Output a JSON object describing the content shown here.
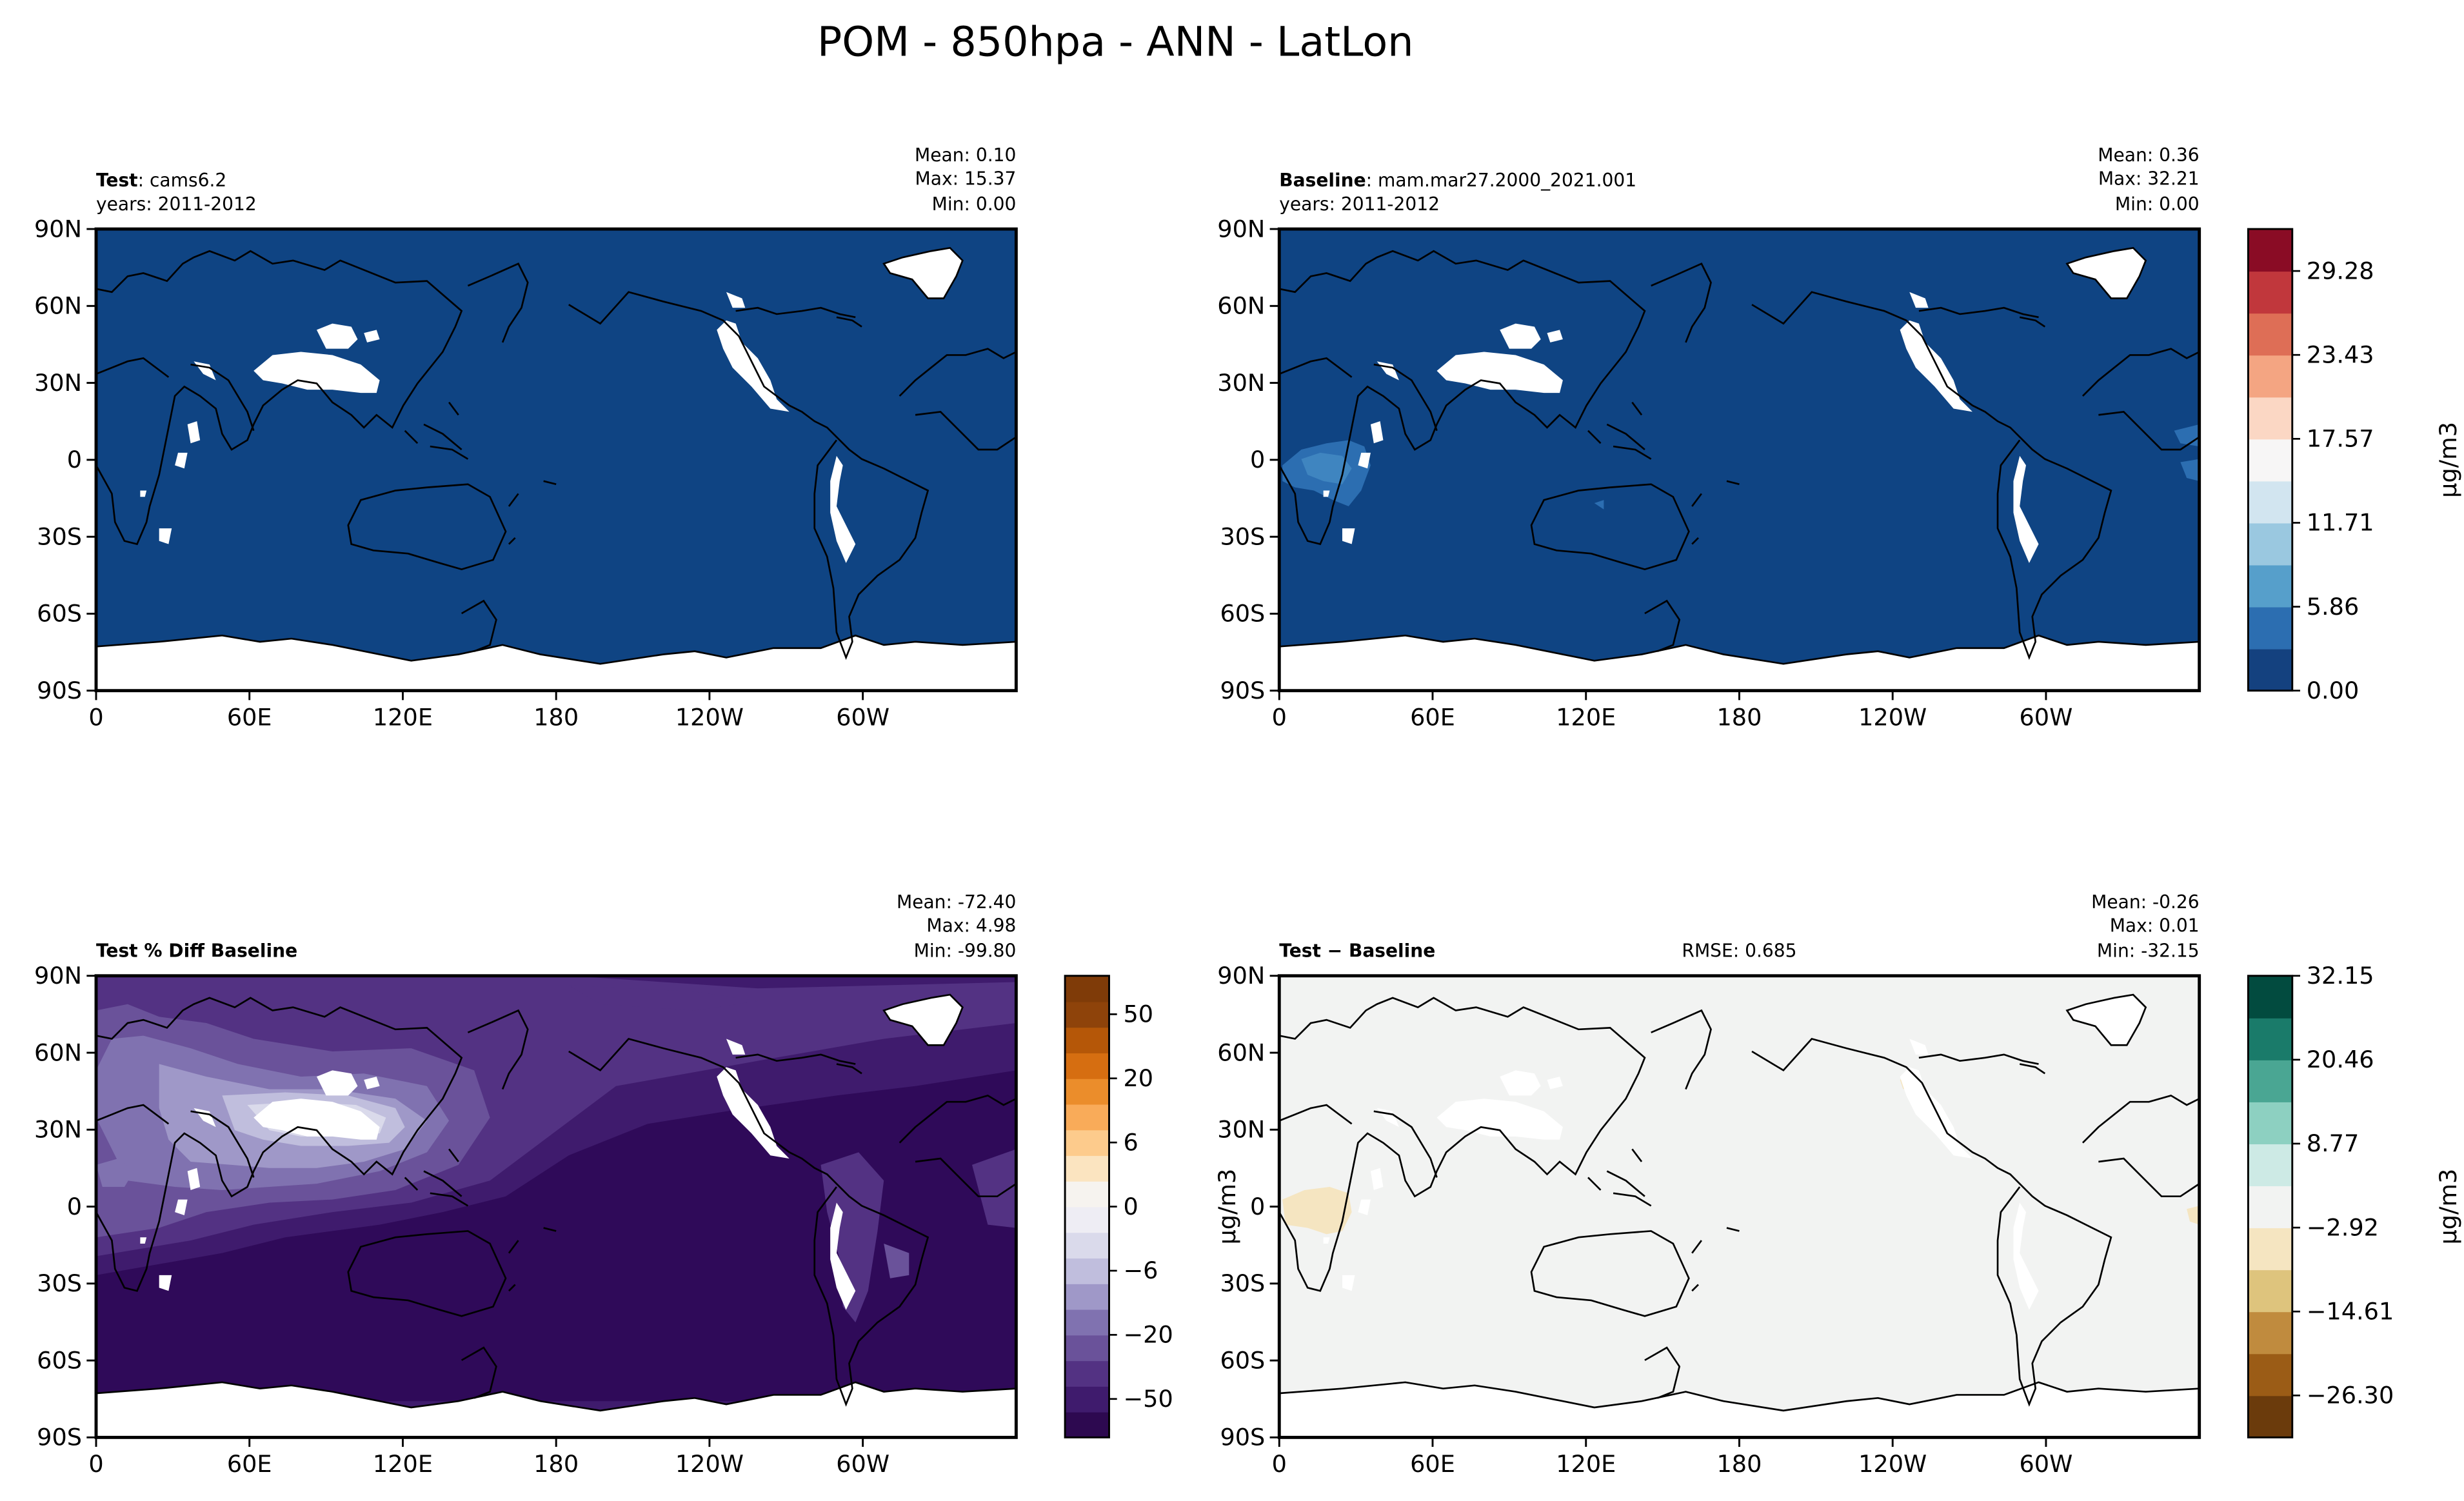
{
  "figure": {
    "title": "POM - 850hpa - ANN - LatLon"
  },
  "lon_ticks": [
    "0",
    "60E",
    "120E",
    "180",
    "120W",
    "60W"
  ],
  "lat_ticks": [
    "90N",
    "60N",
    "30N",
    "0",
    "30S",
    "60S",
    "90S"
  ],
  "colors": {
    "ocean_blue": "#0f4483",
    "purple_deep": "#2f0a59",
    "diff_background": "#f2f3f2",
    "no_data": "#ffffff",
    "coastline": "#000000"
  },
  "panels": [
    {
      "id": "test",
      "title_bold": "Test",
      "title_rest": ": cams6.2",
      "years": "years: 2011-2012",
      "stats": {
        "mean": "Mean:  0.10",
        "max": "Max: 15.37",
        "min": "Min:  0.00"
      },
      "rmse": ""
    },
    {
      "id": "baseline",
      "title_bold": "Baseline",
      "title_rest": ": mam.mar27.2000_2021.001",
      "years": "years: 2011-2012",
      "stats": {
        "mean": "Mean:  0.36",
        "max": "Max: 32.21",
        "min": "Min:  0.00"
      },
      "rmse": ""
    },
    {
      "id": "pct_diff",
      "title_bold": "Test % Diff Baseline",
      "title_rest": "",
      "years": "",
      "stats": {
        "mean": "Mean: -72.40",
        "max": "Max:  4.98",
        "min": "Min: -99.80"
      },
      "rmse": ""
    },
    {
      "id": "diff",
      "title_bold": "Test − Baseline",
      "title_rest": "",
      "years": "",
      "stats": {
        "mean": "Mean: -0.26",
        "max": "Max:  0.01",
        "min": "Min: -32.15"
      },
      "rmse": "RMSE: 0.685"
    }
  ],
  "colorbars": [
    {
      "id": "cbar-shared",
      "label": "μg/m3",
      "label_side": "right",
      "colors": [
        "#14417f",
        "#2c6eb1",
        "#569fcb",
        "#9ac8e0",
        "#d2e5f0",
        "#f7f6f6",
        "#fbd7c4",
        "#f4a582",
        "#de6e56",
        "#c1373c",
        "#8a0c25"
      ],
      "tick_labels": [
        "0.00",
        "5.86",
        "11.71",
        "17.57",
        "23.43",
        "29.28"
      ],
      "tick_fracs": [
        0.0,
        0.1818,
        0.3636,
        0.5455,
        0.7273,
        0.9091
      ]
    },
    {
      "id": "cbar-pct",
      "label": "μg/m3",
      "label_side": "right",
      "colors": [
        "#2d0950",
        "#3f1b6d",
        "#533283",
        "#6a529a",
        "#8072b0",
        "#9f98c8",
        "#c0bedd",
        "#dadaeb",
        "#eeedf4",
        "#f6f3ef",
        "#fbe4c0",
        "#fdcb8c",
        "#f9ab59",
        "#eb8d2b",
        "#d66e11",
        "#b55708",
        "#8e430a",
        "#7f3b08"
      ],
      "tick_labels": [
        "−50",
        "−20",
        "−6",
        "0",
        "6",
        "20",
        "50"
      ],
      "tick_fracs": [
        0.0833,
        0.2222,
        0.3611,
        0.5,
        0.6389,
        0.7778,
        0.9167
      ]
    },
    {
      "id": "cbar-diff",
      "label": "μg/m3",
      "label_side": "right",
      "colors": [
        "#6b3b0c",
        "#9b5c16",
        "#c08b3e",
        "#dec47d",
        "#f5e5c1",
        "#f2f3f2",
        "#cdeae5",
        "#8dd0c1",
        "#4aa693",
        "#1a7b6a",
        "#024b3f"
      ],
      "tick_labels": [
        "−26.30",
        "−14.61",
        "−2.92",
        "8.77",
        "20.46",
        "32.15"
      ],
      "tick_fracs": [
        0.0909,
        0.2727,
        0.4545,
        0.6364,
        0.8182,
        1.0
      ]
    }
  ]
}
